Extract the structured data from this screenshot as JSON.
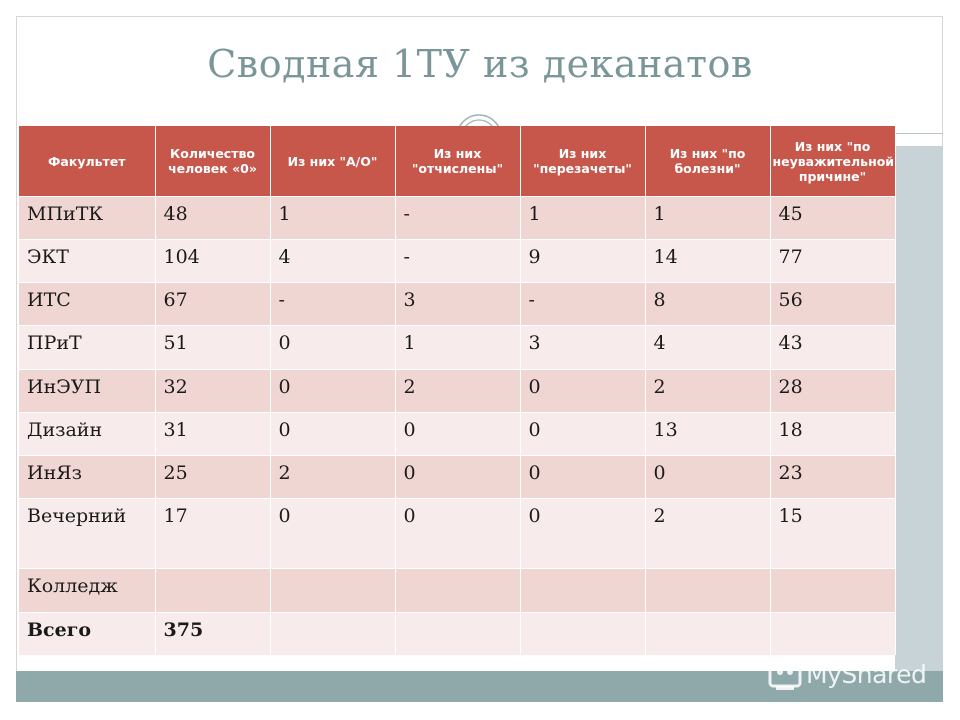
{
  "slide": {
    "title": "Сводная 1ТУ из деканатов",
    "watermark": "MyShared",
    "colors": {
      "header": "#c8574b",
      "row_odd": "#f0d6d3",
      "row_even": "#f7eceb",
      "title": "#7a9699",
      "band": "#8fa9ab"
    }
  },
  "table": {
    "headers": [
      "Факультет",
      "Количество человек «0»",
      "Из них \"А/О\"",
      "Из них \"отчислены\"",
      "Из них \"перезачеты\"",
      "Из них \"по болезни\"",
      "Из них \"по неуважительной причине\""
    ],
    "rows": [
      [
        "МПиТК",
        "48",
        "1",
        "-",
        "1",
        "1",
        "45"
      ],
      [
        "ЭКТ",
        "104",
        "4",
        "-",
        "9",
        "14",
        "77"
      ],
      [
        "ИТС",
        "67",
        "-",
        "3",
        "-",
        "8",
        "56"
      ],
      [
        "ПРиТ",
        "51",
        "0",
        "1",
        "3",
        "4",
        "43"
      ],
      [
        "ИнЭУП",
        "32",
        "0",
        "2",
        "0",
        "2",
        "28"
      ],
      [
        "Дизайн",
        "31",
        "0",
        "0",
        "0",
        "13",
        "18"
      ],
      [
        "ИнЯз",
        "25",
        "2",
        "0",
        "0",
        "0",
        "23"
      ],
      [
        "Вечерний",
        "17",
        "0",
        "0",
        "0",
        "2",
        "15"
      ],
      [
        "Колледж",
        "",
        "",
        "",
        "",
        "",
        ""
      ],
      [
        "Всего",
        "375",
        "",
        "",
        "",
        "",
        ""
      ]
    ]
  }
}
